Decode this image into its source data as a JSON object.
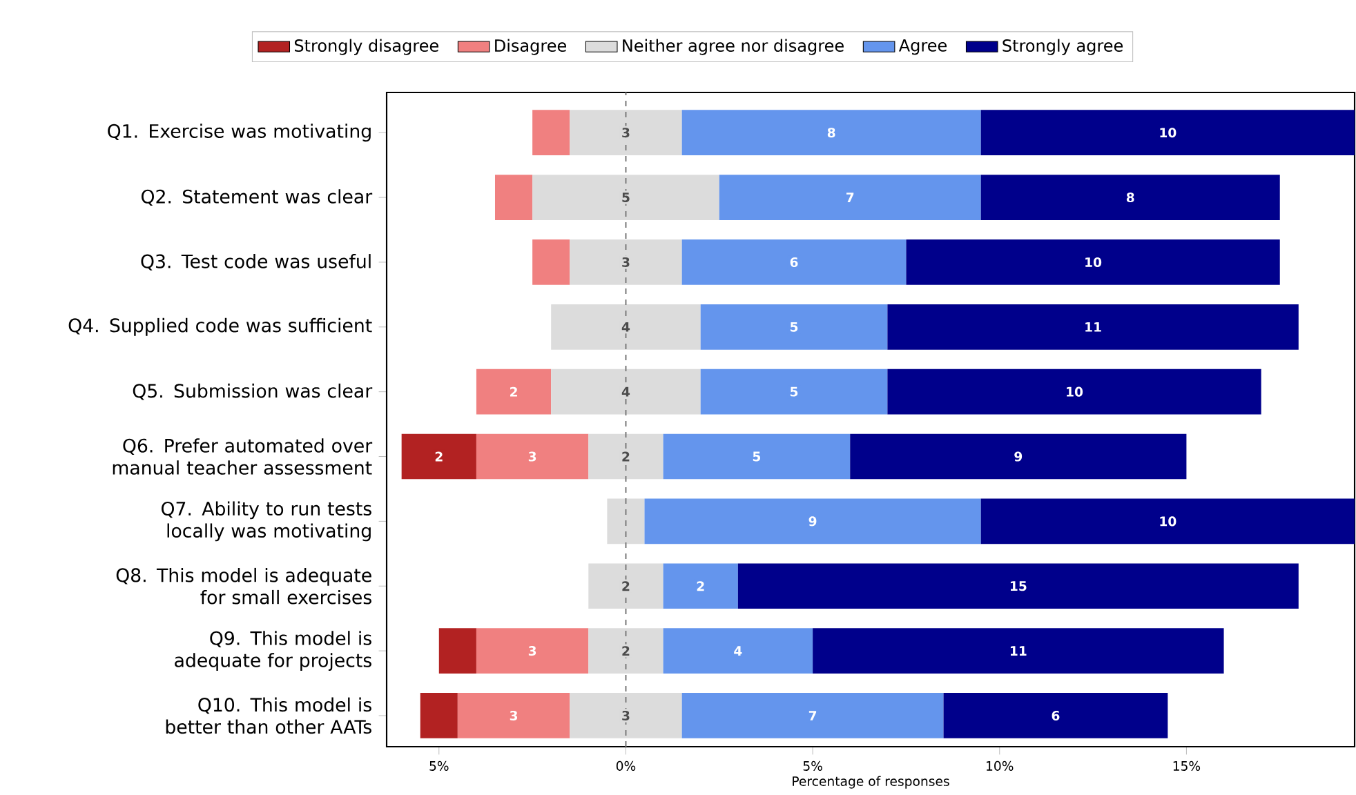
{
  "chart_data": {
    "type": "bar",
    "orientation": "horizontal",
    "legend": "top",
    "xlabel": "Percentage of responses",
    "categories": [
      "Q1. Exercise was motivating",
      "Q2. Statement was clear",
      "Q3. Test code was useful",
      "Q4. Supplied code was sufficient",
      "Q5. Submission was clear",
      "Q6. Prefer automated over manual teacher assessment",
      "Q7. Ability to run tests locally was motivating",
      "Q8. This model is adequate for small exercises",
      "Q9. This model is adequate for projects",
      "Q10. This model is better than other AATs"
    ],
    "series": [
      {
        "name": "Strongly disagree",
        "color": "#b22222",
        "base": [
          null,
          null,
          null,
          null,
          null,
          -6,
          null,
          null,
          -5,
          -5.5
        ],
        "values": [
          null,
          null,
          null,
          null,
          null,
          2,
          null,
          null,
          1,
          1
        ],
        "value_labels": [
          null,
          null,
          null,
          null,
          null,
          "2",
          null,
          null,
          null,
          null
        ]
      },
      {
        "name": "Disagree",
        "color": "#f08080",
        "base": [
          -2.5,
          -3.5,
          -2.5,
          null,
          -4,
          -4,
          null,
          null,
          -4,
          -4.5
        ],
        "values": [
          1,
          1,
          1,
          null,
          2,
          3,
          null,
          null,
          3,
          3
        ],
        "value_labels": [
          null,
          null,
          null,
          null,
          "2",
          "3",
          null,
          null,
          "3",
          "3"
        ]
      },
      {
        "name": "Neither agree nor disagree",
        "color": "#dcdcdc",
        "base": [
          -1.5,
          -2.5,
          -1.5,
          -2,
          -2,
          -1,
          -0.5,
          -1,
          -1,
          -1.5
        ],
        "values": [
          3,
          5,
          3,
          4,
          4,
          2,
          1,
          2,
          2,
          3
        ],
        "value_labels": [
          "3",
          "5",
          "3",
          "4",
          "4",
          "2",
          null,
          "2",
          "2",
          "3"
        ]
      },
      {
        "name": "Agree",
        "color": "#6495ed",
        "base": [
          1.5,
          2.5,
          1.5,
          2,
          2,
          1,
          0.5,
          1,
          1,
          1.5
        ],
        "values": [
          8,
          7,
          6,
          5,
          5,
          5,
          9,
          2,
          4,
          7
        ],
        "value_labels": [
          "8",
          "7",
          "6",
          "5",
          "5",
          "5",
          "9",
          "2",
          "4",
          "7"
        ]
      },
      {
        "name": "Strongly agree",
        "color": "#00008b",
        "base": [
          9.5,
          9.5,
          7.5,
          7,
          7,
          6,
          9.5,
          3,
          5,
          8.5
        ],
        "values": [
          10,
          8,
          10,
          11,
          10,
          9,
          10,
          15,
          11,
          6
        ],
        "value_labels": [
          "10",
          "8",
          "10",
          "11",
          "10",
          "9",
          "10",
          "15",
          "11",
          "6"
        ]
      }
    ],
    "xlim": [
      -6.4,
      19.5
    ],
    "xticks": [
      {
        "value": -5,
        "label": "5%"
      },
      {
        "value": 0,
        "label": "0%"
      },
      {
        "value": 5,
        "label": "5%"
      },
      {
        "value": 10,
        "label": "10%"
      },
      {
        "value": 15,
        "label": "15%"
      }
    ],
    "ref_lines": [
      {
        "axis": "x",
        "value": 0,
        "color": "#808080",
        "line_style": "dashed"
      }
    ]
  }
}
